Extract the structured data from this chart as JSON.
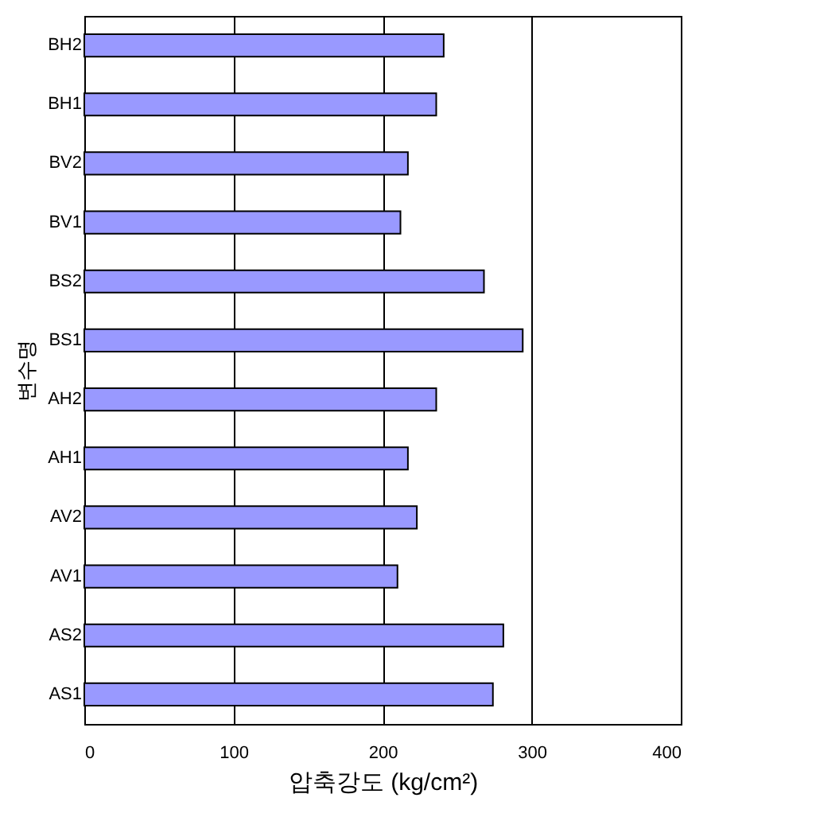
{
  "chart_data": {
    "type": "bar",
    "orientation": "horizontal",
    "xlabel": "압축강도 (kg/cm²)",
    "ylabel": "변수명",
    "categories": [
      "BH2",
      "BH1",
      "BV2",
      "BV1",
      "BS2",
      "BS1",
      "AH2",
      "AH1",
      "AV2",
      "AV1",
      "AS2",
      "AS1"
    ],
    "values": [
      241,
      236,
      217,
      212,
      268,
      294,
      236,
      217,
      223,
      210,
      281,
      274
    ],
    "color": "#9999ff",
    "xlim": [
      0,
      400
    ],
    "xticks": [
      0,
      100,
      200,
      300,
      400
    ],
    "grid": "x"
  }
}
